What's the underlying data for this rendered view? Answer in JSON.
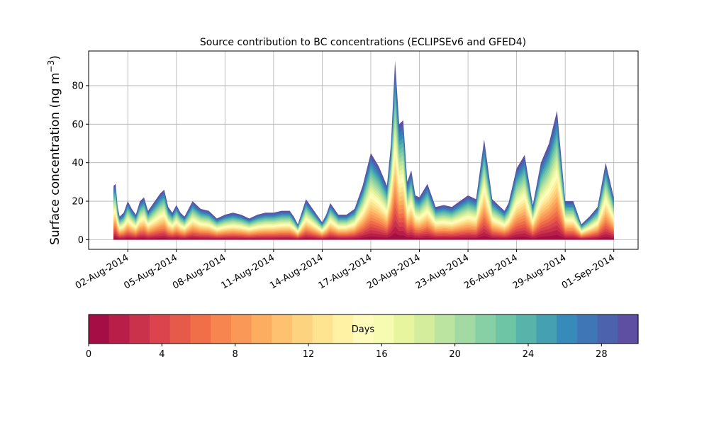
{
  "chart_data": {
    "type": "area",
    "stacked": true,
    "title": "Source contribution to BC concentrations (ECLIPSEv6 and GFED4)",
    "ylabel": "Surface concentration (ng m",
    "ylabel_exponent": "−3",
    "ylabel_close": ")",
    "ylim": [
      -5,
      98
    ],
    "yticks": [
      0,
      20,
      40,
      60,
      80
    ],
    "xlim": [
      "2014-07-30T14:00",
      "2014-09-02T12:00"
    ],
    "xticks": [
      {
        "date": "2014-08-02",
        "label": "02-Aug-2014"
      },
      {
        "date": "2014-08-05",
        "label": "05-Aug-2014"
      },
      {
        "date": "2014-08-08",
        "label": "08-Aug-2014"
      },
      {
        "date": "2014-08-11",
        "label": "11-Aug-2014"
      },
      {
        "date": "2014-08-14",
        "label": "14-Aug-2014"
      },
      {
        "date": "2014-08-17",
        "label": "17-Aug-2014"
      },
      {
        "date": "2014-08-20",
        "label": "20-Aug-2014"
      },
      {
        "date": "2014-08-23",
        "label": "23-Aug-2014"
      },
      {
        "date": "2014-08-26",
        "label": "26-Aug-2014"
      },
      {
        "date": "2014-08-29",
        "label": "29-Aug-2014"
      },
      {
        "date": "2014-09-01",
        "label": "01-Sep-2014"
      }
    ],
    "grid": true,
    "total_series": {
      "x": [
        "2014-08-01T03:00",
        "2014-08-01T06:00",
        "2014-08-01T09:00",
        "2014-08-01T12:00",
        "2014-08-01T18:00",
        "2014-08-02T00:00",
        "2014-08-02T06:00",
        "2014-08-02T12:00",
        "2014-08-02T18:00",
        "2014-08-03T00:00",
        "2014-08-03T06:00",
        "2014-08-03T12:00",
        "2014-08-04T00:00",
        "2014-08-04T06:00",
        "2014-08-04T12:00",
        "2014-08-04T18:00",
        "2014-08-05T00:00",
        "2014-08-05T06:00",
        "2014-08-05T12:00",
        "2014-08-06T00:00",
        "2014-08-06T12:00",
        "2014-08-07T00:00",
        "2014-08-07T12:00",
        "2014-08-08T00:00",
        "2014-08-08T12:00",
        "2014-08-09T00:00",
        "2014-08-09T12:00",
        "2014-08-10T00:00",
        "2014-08-10T12:00",
        "2014-08-11T00:00",
        "2014-08-11T12:00",
        "2014-08-12T00:00",
        "2014-08-12T06:00",
        "2014-08-12T12:00",
        "2014-08-13T00:00",
        "2014-08-13T12:00",
        "2014-08-14T00:00",
        "2014-08-14T06:00",
        "2014-08-14T12:00",
        "2014-08-15T00:00",
        "2014-08-15T12:00",
        "2014-08-16T00:00",
        "2014-08-16T12:00",
        "2014-08-17T00:00",
        "2014-08-17T12:00",
        "2014-08-18T00:00",
        "2014-08-18T06:00",
        "2014-08-18T12:00",
        "2014-08-18T18:00",
        "2014-08-19T00:00",
        "2014-08-19T06:00",
        "2014-08-19T12:00",
        "2014-08-19T18:00",
        "2014-08-20T00:00",
        "2014-08-20T12:00",
        "2014-08-21T00:00",
        "2014-08-21T12:00",
        "2014-08-22T00:00",
        "2014-08-22T12:00",
        "2014-08-23T00:00",
        "2014-08-23T12:00",
        "2014-08-24T00:00",
        "2014-08-24T12:00",
        "2014-08-25T00:00",
        "2014-08-25T06:00",
        "2014-08-25T12:00",
        "2014-08-26T00:00",
        "2014-08-26T12:00",
        "2014-08-27T00:00",
        "2014-08-27T12:00",
        "2014-08-28T00:00",
        "2014-08-28T12:00",
        "2014-08-29T00:00",
        "2014-08-29T06:00",
        "2014-08-29T12:00",
        "2014-08-30T00:00",
        "2014-08-30T12:00",
        "2014-08-31T00:00",
        "2014-08-31T12:00",
        "2014-09-01T00:00"
      ],
      "y": [
        28,
        29,
        17,
        12,
        14,
        20,
        16,
        13,
        20,
        22,
        15,
        18,
        24,
        26,
        17,
        14,
        18,
        14,
        12,
        20,
        16,
        15,
        11,
        13,
        14,
        13,
        11,
        13,
        14,
        14,
        15,
        15,
        12,
        8,
        21,
        15,
        9,
        13,
        19,
        13,
        13,
        16,
        28,
        45,
        38,
        28,
        50,
        93,
        60,
        62,
        30,
        36,
        23,
        22,
        29,
        17,
        18,
        17,
        20,
        23,
        21,
        52,
        21,
        17,
        15,
        19,
        37,
        44,
        18,
        40,
        50,
        67,
        20,
        20,
        20,
        8,
        12,
        17,
        40,
        22
      ]
    },
    "colorbar": {
      "label": "Days",
      "min": 0,
      "max": 30,
      "ticks": [
        0,
        4,
        8,
        12,
        16,
        20,
        24,
        28
      ],
      "colors": [
        "#a50e44",
        "#b81e47",
        "#ca314a",
        "#db444c",
        "#e65a4a",
        "#f06e48",
        "#f7854f",
        "#fa9957",
        "#fdad60",
        "#fdc170",
        "#fed380",
        "#fee491",
        "#fff2a5",
        "#fffcbb",
        "#f5fbb0",
        "#e6f59e",
        "#d3ed9c",
        "#bbe4a0",
        "#a3d9a3",
        "#87cfa4",
        "#6dc5a5",
        "#58b4aa",
        "#45a0b1",
        "#378bbb",
        "#3e76b6",
        "#4c62ac",
        "#5e4fa2"
      ]
    }
  }
}
